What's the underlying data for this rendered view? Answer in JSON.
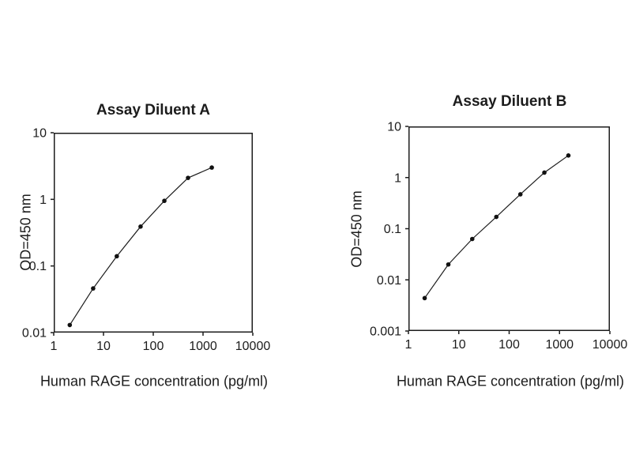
{
  "page": {
    "background": "#ffffff",
    "text_color": "#1c1c1c",
    "axis_color": "#1c1c1c",
    "line_color": "#1c1c1c",
    "marker_color": "#111111"
  },
  "chart_data": [
    {
      "type": "line",
      "title": "Assay Diluent A",
      "xlabel": "Human RAGE concentration (pg/ml)",
      "ylabel": "OD=450 nm",
      "xscale": "log",
      "yscale": "log",
      "xlim": [
        1,
        10000
      ],
      "ylim": [
        0.01,
        10
      ],
      "x_tick_labels": [
        "1",
        "10",
        "100",
        "1000",
        "10000"
      ],
      "y_tick_labels": [
        "10",
        "1",
        "0.1",
        "0.01"
      ],
      "grid": false,
      "legend": "none",
      "marker": "filled-circle",
      "x": [
        2.1,
        6.2,
        18.5,
        55.6,
        167,
        500,
        1500
      ],
      "y": [
        0.013,
        0.046,
        0.14,
        0.39,
        0.95,
        2.1,
        3.0
      ]
    },
    {
      "type": "line",
      "title": "Assay Diluent B",
      "xlabel": "Human RAGE concentration (pg/ml)",
      "ylabel": "OD=450 nm",
      "xscale": "log",
      "yscale": "log",
      "xlim": [
        1,
        10000
      ],
      "ylim": [
        0.001,
        10
      ],
      "x_tick_labels": [
        "1",
        "10",
        "100",
        "1000",
        "10000"
      ],
      "y_tick_labels": [
        "10",
        "1",
        "0.1",
        "0.01",
        "0.001"
      ],
      "grid": false,
      "legend": "none",
      "marker": "filled-circle",
      "x": [
        2.1,
        6.2,
        18.5,
        55.6,
        167,
        500,
        1500
      ],
      "y": [
        0.0044,
        0.02,
        0.063,
        0.17,
        0.47,
        1.25,
        2.7
      ]
    }
  ]
}
